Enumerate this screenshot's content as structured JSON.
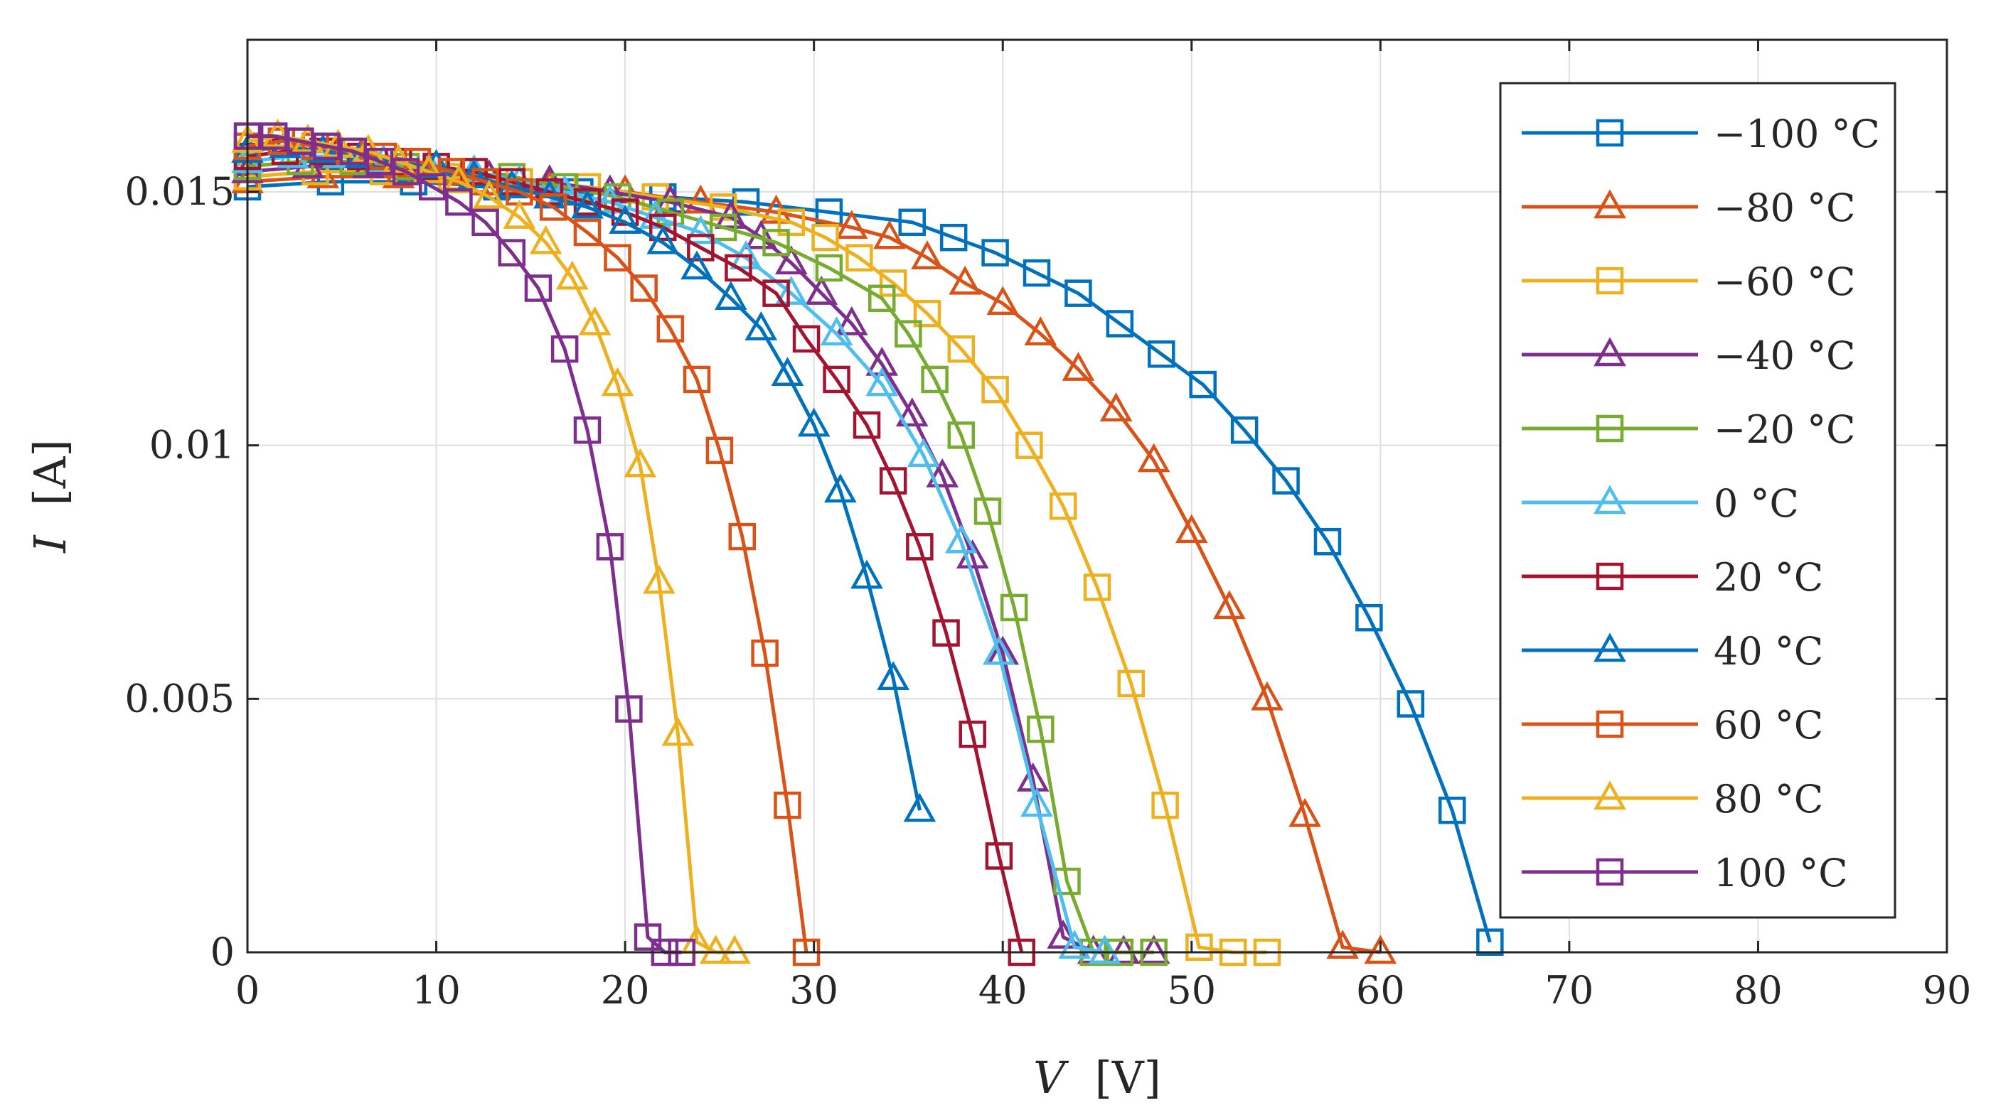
{
  "chart_data": {
    "type": "line",
    "title": "",
    "xlabel_var": "V",
    "xlabel_unit": "[V]",
    "ylabel_var": "I",
    "ylabel_unit": "[A]",
    "xlim": [
      0,
      90
    ],
    "ylim": [
      0,
      0.018
    ],
    "xticks": [
      0,
      10,
      20,
      30,
      40,
      50,
      60,
      70,
      80,
      90
    ],
    "yticks": [
      0,
      0.005,
      0.01,
      0.015
    ],
    "ytick_labels": [
      "0",
      "0.005",
      "0.01",
      "0.015"
    ],
    "grid": true,
    "legend_position": "top-right",
    "series": [
      {
        "name": "−100 °C",
        "color": "#0072bd",
        "marker": "square",
        "x": [
          0,
          4.4,
          8.8,
          13.2,
          17.6,
          22.0,
          26.4,
          30.8,
          35.2,
          37.4,
          39.6,
          41.8,
          44.0,
          46.2,
          48.4,
          50.6,
          52.8,
          55.0,
          57.2,
          59.4,
          61.6,
          63.8,
          65.8
        ],
        "y": [
          0.0151,
          0.0152,
          0.0152,
          0.0151,
          0.015,
          0.0149,
          0.0148,
          0.0146,
          0.0144,
          0.0141,
          0.0138,
          0.0134,
          0.013,
          0.0124,
          0.0118,
          0.0112,
          0.0103,
          0.0093,
          0.0081,
          0.0066,
          0.0049,
          0.0028,
          0.0002
        ]
      },
      {
        "name": "−80 °C",
        "color": "#d95319",
        "marker": "triangle",
        "x": [
          0,
          4.0,
          8.0,
          12.0,
          16.0,
          20.0,
          24.0,
          28.0,
          32.0,
          34.0,
          36.0,
          38.0,
          40.0,
          42.0,
          44.0,
          46.0,
          48.0,
          50.0,
          52.0,
          54.0,
          56.0,
          58.0,
          60.0
        ],
        "y": [
          0.0152,
          0.0153,
          0.0153,
          0.0152,
          0.0151,
          0.015,
          0.0148,
          0.0146,
          0.0143,
          0.0141,
          0.0137,
          0.0132,
          0.0128,
          0.0122,
          0.0115,
          0.0107,
          0.0097,
          0.0083,
          0.0068,
          0.005,
          0.0027,
          0.0001,
          0
        ]
      },
      {
        "name": "−60 °C",
        "color": "#edb120",
        "marker": "square",
        "x": [
          0,
          3.6,
          7.2,
          10.8,
          14.4,
          18.0,
          21.6,
          25.2,
          28.8,
          30.6,
          32.4,
          34.2,
          36.0,
          37.8,
          39.6,
          41.4,
          43.2,
          45.0,
          46.8,
          48.6,
          50.4,
          52.2,
          54.0
        ],
        "y": [
          0.0153,
          0.0154,
          0.0154,
          0.0153,
          0.0152,
          0.0151,
          0.0149,
          0.0147,
          0.0144,
          0.0141,
          0.0137,
          0.0132,
          0.0126,
          0.0119,
          0.0111,
          0.01,
          0.0088,
          0.0072,
          0.0053,
          0.0029,
          0.0001,
          0,
          0
        ]
      },
      {
        "name": "−40 °C",
        "color": "#7e2f8e",
        "marker": "triangle",
        "x": [
          0,
          3.2,
          6.4,
          9.6,
          12.8,
          16.0,
          19.2,
          22.4,
          25.6,
          27.2,
          28.8,
          30.4,
          32.0,
          33.6,
          35.2,
          36.8,
          38.4,
          40.0,
          41.6,
          43.2,
          44.8,
          46.4,
          48.0
        ],
        "y": [
          0.0154,
          0.0155,
          0.0155,
          0.0154,
          0.0153,
          0.0152,
          0.015,
          0.0148,
          0.0145,
          0.0141,
          0.0136,
          0.013,
          0.0124,
          0.0116,
          0.0106,
          0.0094,
          0.0078,
          0.0059,
          0.0034,
          0.0003,
          0,
          0,
          0
        ]
      },
      {
        "name": "−20 °C",
        "color": "#77ac30",
        "marker": "square",
        "x": [
          0,
          2.8,
          5.6,
          8.4,
          11.2,
          14.0,
          16.8,
          19.6,
          22.4,
          25.2,
          28.0,
          30.8,
          33.6,
          35.0,
          36.4,
          37.8,
          39.2,
          40.6,
          42.0,
          43.4,
          44.8,
          46.2,
          48.0
        ],
        "y": [
          0.0155,
          0.0156,
          0.0156,
          0.0155,
          0.0154,
          0.0153,
          0.0151,
          0.0149,
          0.0146,
          0.0143,
          0.014,
          0.0135,
          0.0129,
          0.0122,
          0.0113,
          0.0102,
          0.0087,
          0.0068,
          0.0044,
          0.0014,
          0,
          0,
          0
        ]
      },
      {
        "name": "0 °C",
        "color": "#4dbeee",
        "marker": "triangle",
        "x": [
          0,
          2.4,
          4.8,
          7.2,
          9.6,
          12.0,
          14.4,
          16.8,
          19.2,
          21.6,
          24.0,
          26.4,
          28.8,
          31.2,
          33.6,
          35.8,
          37.8,
          39.8,
          41.8,
          43.8,
          45.4
        ],
        "y": [
          0.0156,
          0.0157,
          0.0157,
          0.0156,
          0.0155,
          0.0154,
          0.0152,
          0.015,
          0.0148,
          0.0145,
          0.0142,
          0.0137,
          0.013,
          0.0122,
          0.0112,
          0.0098,
          0.0081,
          0.0059,
          0.0029,
          0.0001,
          0
        ]
      },
      {
        "name": "20 °C",
        "color": "#a2142f",
        "marker": "square",
        "x": [
          0,
          2.0,
          4.0,
          6.0,
          8.0,
          10.0,
          12.0,
          14.0,
          16.0,
          18.0,
          20.0,
          22.0,
          24.0,
          26.0,
          28.0,
          29.6,
          31.2,
          32.8,
          34.2,
          35.6,
          37.0,
          38.4,
          39.8,
          41.0
        ],
        "y": [
          0.0157,
          0.0158,
          0.0158,
          0.0157,
          0.0156,
          0.0155,
          0.0154,
          0.0152,
          0.015,
          0.0148,
          0.0146,
          0.0143,
          0.0139,
          0.0135,
          0.013,
          0.0121,
          0.0113,
          0.0104,
          0.0093,
          0.008,
          0.0063,
          0.0043,
          0.0019,
          0
        ]
      },
      {
        "name": "40 °C",
        "color": "#0072bd",
        "marker": "triangle",
        "x": [
          0,
          2.0,
          4.0,
          6.0,
          8.0,
          10.0,
          12.0,
          14.0,
          16.0,
          18.0,
          20.0,
          22.0,
          23.8,
          25.6,
          27.2,
          28.6,
          30.0,
          31.4,
          32.8,
          34.2,
          35.6
        ],
        "y": [
          0.0158,
          0.0159,
          0.0158,
          0.0157,
          0.0156,
          0.0155,
          0.0153,
          0.0151,
          0.0149,
          0.0147,
          0.0144,
          0.014,
          0.0135,
          0.0129,
          0.0123,
          0.0114,
          0.0104,
          0.0091,
          0.0074,
          0.0054,
          0.0028
        ]
      },
      {
        "name": "60 °C",
        "color": "#d95319",
        "marker": "square",
        "x": [
          0,
          1.8,
          3.6,
          5.4,
          7.2,
          9.0,
          10.8,
          12.6,
          14.4,
          16.2,
          18.0,
          19.6,
          21.0,
          22.4,
          23.8,
          25.0,
          26.2,
          27.4,
          28.6,
          29.6
        ],
        "y": [
          0.0159,
          0.016,
          0.0159,
          0.0158,
          0.0157,
          0.0156,
          0.0154,
          0.0152,
          0.015,
          0.0147,
          0.0142,
          0.0137,
          0.0131,
          0.0123,
          0.0113,
          0.0099,
          0.0082,
          0.0059,
          0.0029,
          0
        ]
      },
      {
        "name": "80 °C",
        "color": "#edb120",
        "marker": "triangle",
        "x": [
          0,
          1.6,
          3.2,
          4.8,
          6.4,
          8.0,
          9.6,
          11.2,
          12.8,
          14.4,
          15.8,
          17.2,
          18.4,
          19.6,
          20.8,
          21.8,
          22.8,
          23.8,
          24.8,
          25.8
        ],
        "y": [
          0.016,
          0.0161,
          0.016,
          0.0159,
          0.0158,
          0.0156,
          0.0154,
          0.0152,
          0.0149,
          0.0145,
          0.014,
          0.0133,
          0.0124,
          0.0112,
          0.0096,
          0.0073,
          0.0043,
          0.0002,
          0,
          0
        ]
      },
      {
        "name": "100 °C",
        "color": "#7e2f8e",
        "marker": "square",
        "x": [
          0,
          1.4,
          2.8,
          4.2,
          5.6,
          7.0,
          8.4,
          9.8,
          11.2,
          12.6,
          14.0,
          15.4,
          16.8,
          18.0,
          19.2,
          20.2,
          21.2,
          22.1,
          23.0
        ],
        "y": [
          0.0161,
          0.0161,
          0.016,
          0.0159,
          0.0158,
          0.0156,
          0.0154,
          0.0151,
          0.0148,
          0.0144,
          0.0138,
          0.0131,
          0.0119,
          0.0103,
          0.008,
          0.0048,
          0.0003,
          0,
          0
        ]
      }
    ]
  }
}
